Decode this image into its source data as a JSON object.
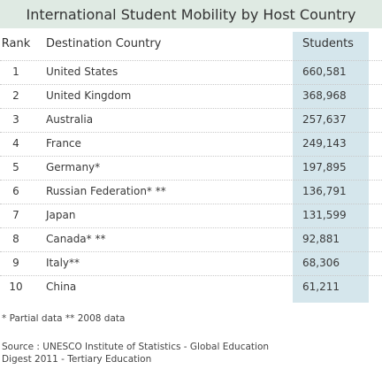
{
  "title": "International Student Mobility by Host Country",
  "table": {
    "headers": {
      "rank": "Rank",
      "country": "Destination Country",
      "students": "Students"
    },
    "rows": [
      {
        "rank": "1",
        "country": "United States",
        "students": "660,581"
      },
      {
        "rank": "2",
        "country": "United Kingdom",
        "students": "368,968"
      },
      {
        "rank": "3",
        "country": "Australia",
        "students": "257,637"
      },
      {
        "rank": "4",
        "country": "France",
        "students": "249,143"
      },
      {
        "rank": "5",
        "country": "Germany*",
        "students": "197,895"
      },
      {
        "rank": "6",
        "country": "Russian Federation* **",
        "students": "136,791"
      },
      {
        "rank": "7",
        "country": "Japan",
        "students": "131,599"
      },
      {
        "rank": "8",
        "country": "Canada* **",
        "students": "92,881"
      },
      {
        "rank": "9",
        "country": "Italy**",
        "students": "68,306"
      },
      {
        "rank": "10",
        "country": "China",
        "students": "61,211"
      }
    ]
  },
  "footnotes": {
    "notes": "* Partial data    ** 2008 data",
    "source_line1": "Source : UNESCO Institute of Statistics - Global Education",
    "source_line2": "Digest 2011 - Tertiary Education"
  },
  "colors": {
    "title_bg": "#dfeae3",
    "students_col_bg": "#d5e6ec"
  }
}
